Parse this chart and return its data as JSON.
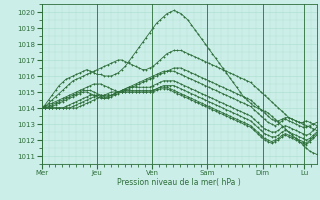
{
  "title": "",
  "xlabel": "Pression niveau de la mer( hPa )",
  "bg_color": "#cceee8",
  "grid_color": "#aaddcc",
  "line_color": "#2d6e3a",
  "ylim": [
    1010.5,
    1020.5
  ],
  "yticks": [
    1011,
    1012,
    1013,
    1014,
    1015,
    1016,
    1017,
    1018,
    1019,
    1020
  ],
  "day_labels": [
    "Mer",
    "Jeu",
    "Ven",
    "Sam",
    "Dim",
    "Lu"
  ],
  "day_positions": [
    0,
    48,
    96,
    144,
    192,
    228
  ],
  "total_steps": 240,
  "series": [
    [
      1014.0,
      1014.2,
      1014.5,
      1014.8,
      1015.1,
      1015.4,
      1015.6,
      1015.8,
      1015.9,
      1016.0,
      1016.1,
      1016.2,
      1016.3,
      1016.4,
      1016.3,
      1016.2,
      1016.1,
      1016.1,
      1016.0,
      1016.0,
      1016.0,
      1016.1,
      1016.2,
      1016.4,
      1016.6,
      1016.9,
      1017.2,
      1017.5,
      1017.8,
      1018.1,
      1018.4,
      1018.7,
      1019.0,
      1019.3,
      1019.5,
      1019.7,
      1019.9,
      1020.0,
      1020.1,
      1020.0,
      1019.9,
      1019.7,
      1019.5,
      1019.2,
      1018.9,
      1018.6,
      1018.3,
      1018.0,
      1017.7,
      1017.4,
      1017.1,
      1016.8,
      1016.5,
      1016.2,
      1015.9,
      1015.6,
      1015.3,
      1015.0,
      1014.7,
      1014.5,
      1014.3,
      1014.1,
      1014.0,
      1013.9,
      1013.8,
      1013.7,
      1013.5,
      1013.3,
      1013.1,
      1012.9,
      1012.7,
      1012.5,
      1012.3,
      1012.1,
      1011.9,
      1011.7,
      1011.5,
      1011.3,
      1011.2,
      1011.1
    ],
    [
      1014.0,
      1014.1,
      1014.3,
      1014.5,
      1014.7,
      1014.9,
      1015.1,
      1015.3,
      1015.5,
      1015.7,
      1015.8,
      1015.9,
      1016.0,
      1016.1,
      1016.2,
      1016.3,
      1016.4,
      1016.5,
      1016.6,
      1016.7,
      1016.8,
      1016.9,
      1017.0,
      1017.0,
      1016.9,
      1016.8,
      1016.7,
      1016.6,
      1016.5,
      1016.4,
      1016.4,
      1016.5,
      1016.6,
      1016.8,
      1017.0,
      1017.2,
      1017.4,
      1017.5,
      1017.6,
      1017.6,
      1017.6,
      1017.5,
      1017.4,
      1017.3,
      1017.2,
      1017.1,
      1017.0,
      1016.9,
      1016.8,
      1016.7,
      1016.6,
      1016.5,
      1016.4,
      1016.3,
      1016.2,
      1016.1,
      1016.0,
      1015.9,
      1015.8,
      1015.7,
      1015.6,
      1015.4,
      1015.2,
      1015.0,
      1014.8,
      1014.6,
      1014.4,
      1014.2,
      1014.0,
      1013.8,
      1013.6,
      1013.4,
      1013.3,
      1013.2,
      1013.1,
      1013.1,
      1013.2,
      1013.1,
      1013.0,
      1012.9
    ],
    [
      1014.0,
      1014.1,
      1014.2,
      1014.3,
      1014.4,
      1014.5,
      1014.6,
      1014.7,
      1014.8,
      1014.9,
      1015.0,
      1015.1,
      1015.2,
      1015.3,
      1015.4,
      1015.5,
      1015.5,
      1015.5,
      1015.4,
      1015.3,
      1015.2,
      1015.1,
      1015.0,
      1015.0,
      1015.1,
      1015.2,
      1015.3,
      1015.4,
      1015.5,
      1015.6,
      1015.7,
      1015.8,
      1015.9,
      1016.0,
      1016.1,
      1016.2,
      1016.3,
      1016.4,
      1016.5,
      1016.5,
      1016.5,
      1016.4,
      1016.3,
      1016.2,
      1016.1,
      1016.0,
      1015.9,
      1015.8,
      1015.7,
      1015.6,
      1015.5,
      1015.4,
      1015.3,
      1015.2,
      1015.1,
      1015.0,
      1014.9,
      1014.8,
      1014.7,
      1014.6,
      1014.5,
      1014.3,
      1014.1,
      1013.9,
      1013.7,
      1013.5,
      1013.3,
      1013.2,
      1013.2,
      1013.3,
      1013.4,
      1013.4,
      1013.3,
      1013.2,
      1013.1,
      1013.0,
      1012.9,
      1012.8,
      1012.7,
      1012.6
    ],
    [
      1014.0,
      1014.0,
      1014.1,
      1014.2,
      1014.3,
      1014.4,
      1014.5,
      1014.6,
      1014.7,
      1014.8,
      1014.9,
      1015.0,
      1015.1,
      1015.1,
      1015.1,
      1015.0,
      1014.9,
      1014.8,
      1014.7,
      1014.7,
      1014.8,
      1014.9,
      1015.0,
      1015.1,
      1015.2,
      1015.3,
      1015.4,
      1015.5,
      1015.6,
      1015.7,
      1015.8,
      1015.9,
      1016.0,
      1016.1,
      1016.2,
      1016.3,
      1016.3,
      1016.3,
      1016.3,
      1016.2,
      1016.1,
      1016.0,
      1015.9,
      1015.8,
      1015.7,
      1015.6,
      1015.5,
      1015.4,
      1015.3,
      1015.2,
      1015.1,
      1015.0,
      1014.9,
      1014.8,
      1014.7,
      1014.6,
      1014.5,
      1014.4,
      1014.3,
      1014.2,
      1014.1,
      1013.9,
      1013.7,
      1013.5,
      1013.3,
      1013.1,
      1013.0,
      1012.9,
      1013.0,
      1013.2,
      1013.3,
      1013.2,
      1013.1,
      1013.0,
      1012.9,
      1012.8,
      1012.8,
      1012.9,
      1013.0,
      1013.1
    ],
    [
      1014.0,
      1014.0,
      1014.0,
      1014.1,
      1014.2,
      1014.3,
      1014.4,
      1014.5,
      1014.6,
      1014.7,
      1014.8,
      1014.9,
      1015.0,
      1015.0,
      1014.9,
      1014.8,
      1014.7,
      1014.6,
      1014.6,
      1014.7,
      1014.8,
      1014.9,
      1015.0,
      1015.1,
      1015.2,
      1015.3,
      1015.3,
      1015.3,
      1015.3,
      1015.3,
      1015.3,
      1015.3,
      1015.4,
      1015.5,
      1015.6,
      1015.7,
      1015.7,
      1015.7,
      1015.7,
      1015.6,
      1015.5,
      1015.4,
      1015.3,
      1015.2,
      1015.1,
      1015.0,
      1014.9,
      1014.8,
      1014.7,
      1014.6,
      1014.5,
      1014.4,
      1014.3,
      1014.2,
      1014.1,
      1014.0,
      1013.9,
      1013.8,
      1013.7,
      1013.6,
      1013.5,
      1013.3,
      1013.1,
      1012.9,
      1012.7,
      1012.6,
      1012.5,
      1012.5,
      1012.6,
      1012.8,
      1012.9,
      1012.8,
      1012.7,
      1012.6,
      1012.5,
      1012.4,
      1012.3,
      1012.4,
      1012.6,
      1012.8
    ],
    [
      1014.0,
      1014.0,
      1014.0,
      1014.0,
      1014.0,
      1014.0,
      1014.0,
      1014.1,
      1014.2,
      1014.3,
      1014.4,
      1014.5,
      1014.6,
      1014.7,
      1014.8,
      1014.8,
      1014.8,
      1014.7,
      1014.6,
      1014.6,
      1014.7,
      1014.8,
      1014.9,
      1015.0,
      1015.1,
      1015.1,
      1015.1,
      1015.1,
      1015.1,
      1015.1,
      1015.1,
      1015.1,
      1015.1,
      1015.2,
      1015.3,
      1015.4,
      1015.4,
      1015.4,
      1015.4,
      1015.3,
      1015.2,
      1015.1,
      1015.0,
      1014.9,
      1014.8,
      1014.7,
      1014.6,
      1014.5,
      1014.4,
      1014.3,
      1014.2,
      1014.1,
      1014.0,
      1013.9,
      1013.8,
      1013.7,
      1013.6,
      1013.5,
      1013.4,
      1013.3,
      1013.2,
      1013.0,
      1012.8,
      1012.6,
      1012.4,
      1012.3,
      1012.2,
      1012.2,
      1012.3,
      1012.5,
      1012.6,
      1012.5,
      1012.4,
      1012.3,
      1012.2,
      1012.1,
      1012.0,
      1012.1,
      1012.3,
      1012.5
    ],
    [
      1014.0,
      1014.0,
      1014.0,
      1014.0,
      1014.0,
      1014.0,
      1014.0,
      1014.0,
      1014.0,
      1014.1,
      1014.2,
      1014.3,
      1014.4,
      1014.5,
      1014.6,
      1014.7,
      1014.8,
      1014.8,
      1014.8,
      1014.8,
      1014.8,
      1014.9,
      1015.0,
      1015.0,
      1015.0,
      1015.0,
      1015.0,
      1015.0,
      1015.0,
      1015.0,
      1015.0,
      1015.0,
      1015.1,
      1015.2,
      1015.3,
      1015.3,
      1015.3,
      1015.2,
      1015.1,
      1015.0,
      1014.9,
      1014.8,
      1014.7,
      1014.6,
      1014.5,
      1014.4,
      1014.3,
      1014.2,
      1014.1,
      1014.0,
      1013.9,
      1013.8,
      1013.7,
      1013.6,
      1013.5,
      1013.4,
      1013.3,
      1013.2,
      1013.1,
      1013.0,
      1012.9,
      1012.7,
      1012.5,
      1012.3,
      1012.1,
      1012.0,
      1011.9,
      1012.0,
      1012.1,
      1012.3,
      1012.4,
      1012.3,
      1012.2,
      1012.1,
      1012.0,
      1011.9,
      1011.8,
      1012.0,
      1012.2,
      1012.4
    ],
    [
      1014.0,
      1014.0,
      1014.0,
      1014.0,
      1014.0,
      1014.0,
      1014.0,
      1014.0,
      1014.0,
      1014.0,
      1014.0,
      1014.1,
      1014.2,
      1014.3,
      1014.4,
      1014.5,
      1014.6,
      1014.7,
      1014.8,
      1014.9,
      1015.0,
      1015.0,
      1015.0,
      1015.0,
      1015.0,
      1015.0,
      1015.0,
      1015.0,
      1015.0,
      1015.0,
      1015.0,
      1015.0,
      1015.0,
      1015.1,
      1015.2,
      1015.2,
      1015.2,
      1015.1,
      1015.0,
      1014.9,
      1014.8,
      1014.7,
      1014.6,
      1014.5,
      1014.4,
      1014.3,
      1014.2,
      1014.1,
      1014.0,
      1013.9,
      1013.8,
      1013.7,
      1013.6,
      1013.5,
      1013.4,
      1013.3,
      1013.2,
      1013.1,
      1013.0,
      1012.9,
      1012.8,
      1012.6,
      1012.4,
      1012.2,
      1012.0,
      1011.9,
      1011.8,
      1011.9,
      1012.0,
      1012.2,
      1012.3,
      1012.2,
      1012.1,
      1012.0,
      1011.9,
      1011.8,
      1011.7,
      1011.9,
      1012.1,
      1012.3
    ]
  ]
}
